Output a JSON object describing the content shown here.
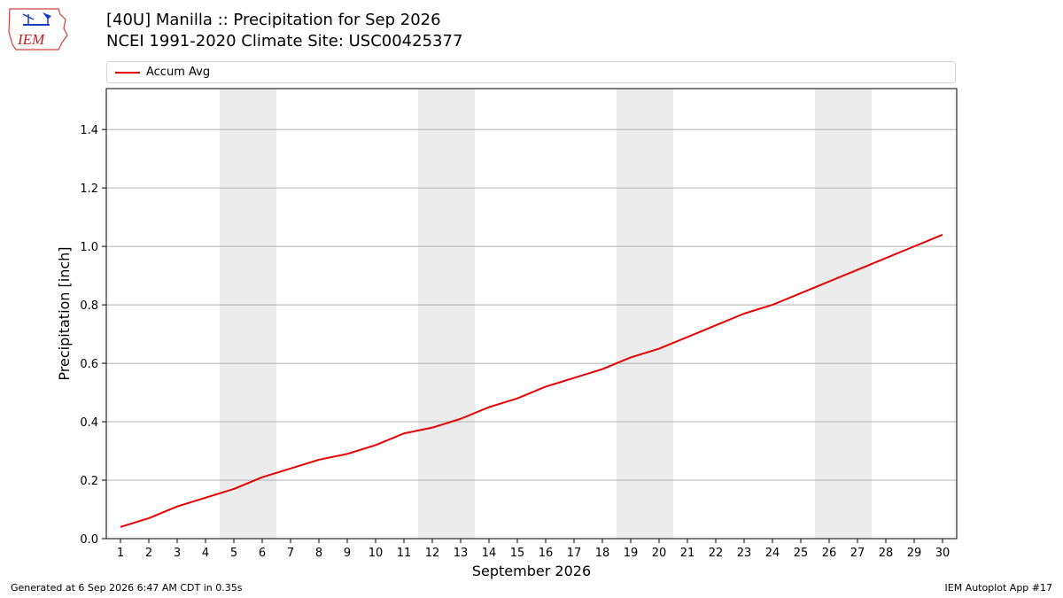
{
  "header": {
    "logo_text": "IEM",
    "title_line1": "[40U] Manilla :: Precipitation for Sep 2026",
    "title_line2": "NCEI 1991-2020 Climate Site: USC00425377"
  },
  "legend": {
    "label": "Accum Avg",
    "color": "#e60000"
  },
  "colors": {
    "line": "#e60000",
    "weekend_band": "#ececec",
    "grid": "#b0b0b0"
  },
  "footer": {
    "left": "Generated at 6 Sep 2026 6:47 AM CDT in 0.35s",
    "right": "IEM Autoplot App #17"
  },
  "chart_data": {
    "type": "line",
    "title": "[40U] Manilla :: Precipitation for Sep 2026",
    "subtitle": "NCEI 1991-2020 Climate Site: USC00425377",
    "xlabel": "September 2026",
    "ylabel": "Precipitation [inch]",
    "x": [
      1,
      2,
      3,
      4,
      5,
      6,
      7,
      8,
      9,
      10,
      11,
      12,
      13,
      14,
      15,
      16,
      17,
      18,
      19,
      20,
      21,
      22,
      23,
      24,
      25,
      26,
      27,
      28,
      29,
      30
    ],
    "xlim": [
      0.5,
      30.5
    ],
    "ylim": [
      0,
      1.54
    ],
    "yticks": [
      0.0,
      0.2,
      0.4,
      0.6,
      0.8,
      1.0,
      1.2,
      1.4
    ],
    "ytick_labels": [
      "0.0",
      "0.2",
      "0.4",
      "0.6",
      "0.8",
      "1.0",
      "1.2",
      "1.4"
    ],
    "grid": "horizontal",
    "legend_position": "top",
    "shaded_x_ranges": [
      [
        4.5,
        6.5
      ],
      [
        11.5,
        13.5
      ],
      [
        18.5,
        20.5
      ],
      [
        25.5,
        27.5
      ]
    ],
    "series": [
      {
        "name": "Accum Avg",
        "color": "#e60000",
        "values": [
          0.04,
          0.07,
          0.11,
          0.14,
          0.17,
          0.21,
          0.24,
          0.27,
          0.29,
          0.32,
          0.36,
          0.38,
          0.41,
          0.45,
          0.48,
          0.52,
          0.55,
          0.58,
          0.62,
          0.65,
          0.69,
          0.73,
          0.77,
          0.8,
          0.84,
          0.88,
          0.92,
          0.96,
          1.0,
          1.04
        ]
      }
    ]
  }
}
